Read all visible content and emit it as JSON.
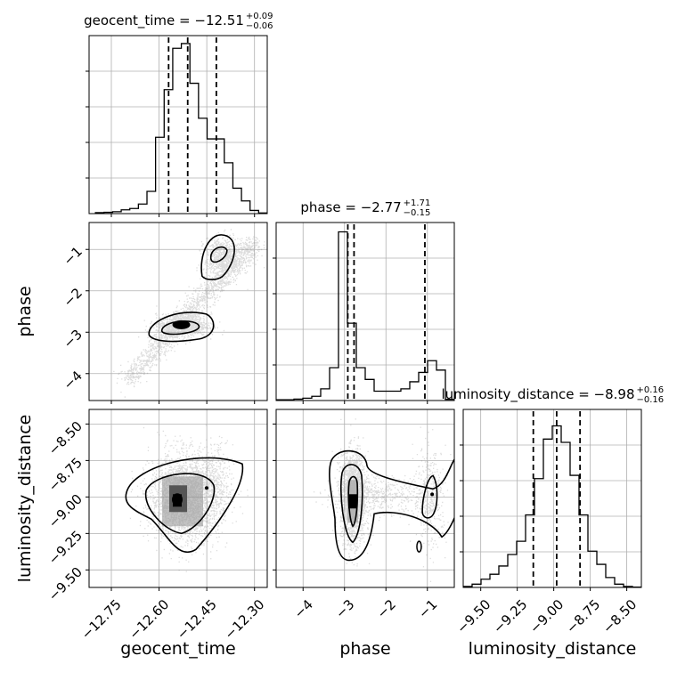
{
  "chart_data": {
    "type": "corner",
    "parameters": [
      "geocent_time",
      "phase",
      "luminosity_distance"
    ],
    "titles": [
      {
        "param": "geocent_time",
        "prefix": "geocent_time = ",
        "median": "−12.51",
        "plus": "+0.09",
        "minus": "−0.06"
      },
      {
        "param": "phase",
        "prefix": "phase = ",
        "median": "−2.77",
        "plus": "+1.71",
        "minus": "−0.15"
      },
      {
        "param": "luminosity_distance",
        "prefix": "luminosity_distance = ",
        "median": "−8.98",
        "plus": "+0.16",
        "minus": "−0.16"
      }
    ],
    "axes": {
      "geocent_time": {
        "range": [
          -12.82,
          -12.26
        ],
        "ticks": [
          -12.75,
          -12.6,
          -12.45,
          -12.3
        ],
        "tick_labels": [
          "−12.75",
          "−12.60",
          "−12.45",
          "−12.30"
        ],
        "label": "geocent_time"
      },
      "phase": {
        "range": [
          -4.65,
          -0.35
        ],
        "ticks": [
          -4,
          -3,
          -2,
          -1
        ],
        "tick_labels": [
          "−4",
          "−3",
          "−2",
          "−1"
        ],
        "label": "phase"
      },
      "luminosity_distance": {
        "range": [
          -9.62,
          -8.4
        ],
        "ticks": [
          -9.5,
          -9.25,
          -9.0,
          -8.75,
          -8.5
        ],
        "tick_labels": [
          "−9.50",
          "−9.25",
          "−9.00",
          "−8.75",
          "−8.50"
        ],
        "label": "luminosity_distance"
      }
    },
    "quantile_lines": {
      "geocent_time": [
        -12.57,
        -12.51,
        -12.42
      ],
      "phase": [
        -2.92,
        -2.77,
        -1.06
      ],
      "luminosity_distance": [
        -9.14,
        -8.98,
        -8.82
      ]
    },
    "histograms": {
      "geocent_time": {
        "bin_edges": [
          -12.8,
          -12.773,
          -12.746,
          -12.719,
          -12.692,
          -12.665,
          -12.638,
          -12.611,
          -12.584,
          -12.557,
          -12.53,
          -12.503,
          -12.476,
          -12.449,
          -12.422,
          -12.395,
          -12.368,
          -12.341,
          -12.314,
          -12.287,
          -12.26
        ],
        "counts": [
          0.3,
          0.4,
          0.6,
          1.2,
          1.6,
          3.0,
          7.0,
          24.0,
          39.0,
          52.0,
          53.5,
          41.0,
          30.0,
          23.5,
          23.5,
          16.0,
          8.0,
          4.0,
          1.0,
          0.2
        ],
        "ylim": [
          0,
          56
        ]
      },
      "phase": {
        "bin_edges": [
          -4.65,
          -4.435,
          -4.22,
          -4.005,
          -3.79,
          -3.575,
          -3.36,
          -3.145,
          -2.93,
          -2.715,
          -2.5,
          -2.285,
          -2.07,
          -1.855,
          -1.64,
          -1.425,
          -1.21,
          -0.995,
          -0.78,
          -0.565,
          -0.35
        ],
        "counts": [
          0.3,
          0.3,
          0.6,
          1.0,
          1.8,
          5.0,
          14.0,
          72.0,
          33.0,
          14.0,
          9.0,
          4.0,
          4.0,
          4.0,
          5.0,
          8.0,
          12.0,
          17.0,
          13.0,
          0.5
        ],
        "ylim": [
          0,
          76
        ]
      },
      "luminosity_distance": {
        "bin_edges": [
          -9.62,
          -9.559,
          -9.498,
          -9.437,
          -9.376,
          -9.315,
          -9.254,
          -9.193,
          -9.132,
          -9.071,
          -9.01,
          -8.949,
          -8.888,
          -8.827,
          -8.766,
          -8.705,
          -8.644,
          -8.583,
          -8.522,
          -8.461,
          -8.4
        ],
        "counts": [
          0.3,
          1.0,
          2.5,
          4.0,
          6.5,
          10.0,
          14.0,
          22.0,
          33.0,
          45.0,
          49.0,
          44.0,
          34.0,
          22.0,
          11.0,
          7.0,
          3.0,
          1.0,
          0.3,
          0.1
        ],
        "ylim": [
          0,
          54
        ]
      }
    },
    "scatter_2d": [
      {
        "x": "geocent_time",
        "y": "phase",
        "peak_density": [
          -12.53,
          -2.82
        ]
      },
      {
        "x": "geocent_time",
        "y": "luminosity_distance",
        "peak_density": [
          -12.54,
          -9.03
        ]
      },
      {
        "x": "phase",
        "y": "luminosity_distance",
        "peak_density": [
          -2.8,
          -9.03
        ]
      }
    ],
    "grid": true,
    "line_color": "#000000",
    "point_color": "#808080"
  }
}
